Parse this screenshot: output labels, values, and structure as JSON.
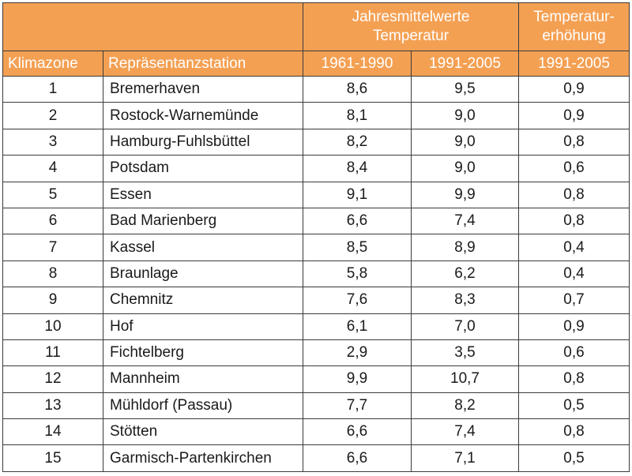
{
  "header": {
    "group_mean": [
      "Jahresmittelwerte",
      "Temperatur"
    ],
    "group_increase": [
      "Temperatur-",
      "erhöhung"
    ]
  },
  "columns": {
    "zone": "Klimazone",
    "station": "Repräsentanzstation",
    "period_1": "1961-1990",
    "period_2": "1991-2005",
    "period_3": "1991-2005"
  },
  "rows": [
    {
      "zone": "1",
      "station": "Bremerhaven",
      "t1": "8,6",
      "t2": "9,5",
      "inc": "0,9"
    },
    {
      "zone": "2",
      "station": "Rostock-Warnemünde",
      "t1": "8,1",
      "t2": "9,0",
      "inc": "0,9"
    },
    {
      "zone": "3",
      "station": "Hamburg-Fuhlsbüttel",
      "t1": "8,2",
      "t2": "9,0",
      "inc": "0,8"
    },
    {
      "zone": "4",
      "station": "Potsdam",
      "t1": "8,4",
      "t2": "9,0",
      "inc": "0,6"
    },
    {
      "zone": "5",
      "station": "Essen",
      "t1": "9,1",
      "t2": "9,9",
      "inc": "0,8"
    },
    {
      "zone": "6",
      "station": "Bad Marienberg",
      "t1": "6,6",
      "t2": "7,4",
      "inc": "0,8"
    },
    {
      "zone": "7",
      "station": "Kassel",
      "t1": "8,5",
      "t2": "8,9",
      "inc": "0,4"
    },
    {
      "zone": "8",
      "station": "Braunlage",
      "t1": "5,8",
      "t2": "6,2",
      "inc": "0,4"
    },
    {
      "zone": "9",
      "station": "Chemnitz",
      "t1": "7,6",
      "t2": "8,3",
      "inc": "0,7"
    },
    {
      "zone": "10",
      "station": "Hof",
      "t1": "6,1",
      "t2": "7,0",
      "inc": "0,9"
    },
    {
      "zone": "11",
      "station": "Fichtelberg",
      "t1": "2,9",
      "t2": "3,5",
      "inc": "0,6"
    },
    {
      "zone": "12",
      "station": "Mannheim",
      "t1": "9,9",
      "t2": "10,7",
      "inc": "0,8"
    },
    {
      "zone": "13",
      "station": "Mühldorf (Passau)",
      "t1": "7,7",
      "t2": "8,2",
      "inc": "0,5"
    },
    {
      "zone": "14",
      "station": "Stötten",
      "t1": "6,6",
      "t2": "7,4",
      "inc": "0,8"
    },
    {
      "zone": "15",
      "station": "Garmisch-Partenkirchen",
      "t1": "6,6",
      "t2": "7,1",
      "inc": "0,5"
    }
  ],
  "colors": {
    "header_bg": "#f4a053",
    "header_text": "#ffffff",
    "border": "#3a3a3a"
  }
}
